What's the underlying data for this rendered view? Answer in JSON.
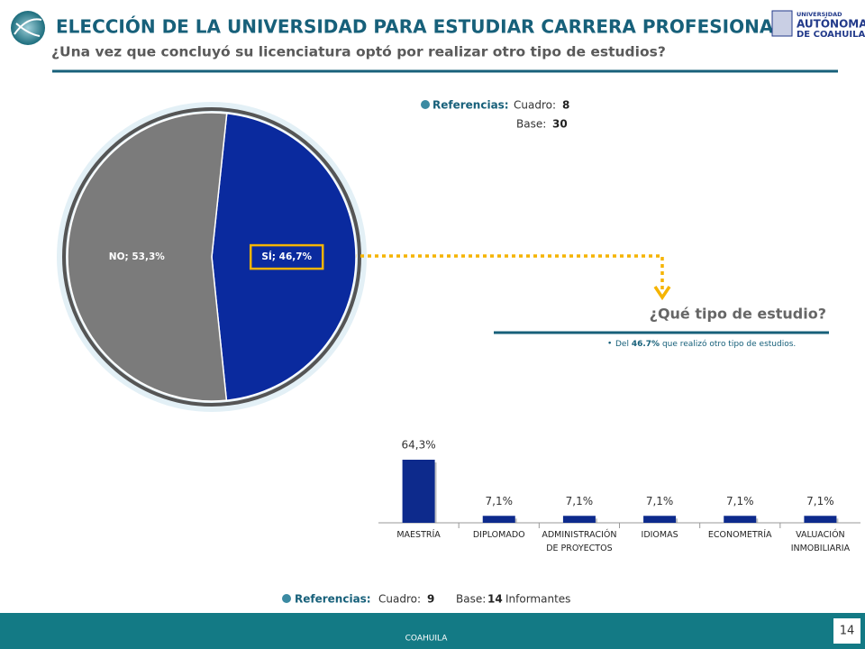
{
  "header": {
    "title": "ELECCIÓN DE LA UNIVERSIDAD PARA ESTUDIAR CARRERA PROFESIONAL",
    "subtitle": "¿Una vez que concluyó su licenciatura optó por realizar otro tipo de estudios?",
    "logo": [
      "UNIVERSIDAD",
      "AUTÓNOMA",
      "DE COAHUILA"
    ]
  },
  "references_top": {
    "label": "Referencias:",
    "cuadro_label": "Cuadro:",
    "cuadro": "8",
    "base_label": "Base:",
    "base": "30"
  },
  "chart_data": [
    {
      "type": "pie",
      "values": [
        46.7,
        53.3
      ],
      "value_labels": [
        "SÍ; 46,7%",
        "NO; 53,3%"
      ],
      "colors": [
        "#0a2a9e",
        "#7b7b7b"
      ]
    },
    {
      "type": "bar",
      "title": "¿Qué tipo de estudio?",
      "note": [
        "Del ",
        "46.7%",
        " que realizó otro tipo de estudios."
      ],
      "categories": [
        "MAESTRÍA",
        "DIPLOMADO",
        "ADMINISTRACIÓN DE PROYECTOS",
        "IDIOMAS",
        "ECONOMETRÍA",
        "VALUACIÓN INMOBILIARIA"
      ],
      "values": [
        64.3,
        7.1,
        7.1,
        7.1,
        7.1,
        7.1
      ],
      "value_labels": [
        "64,3%",
        "7,1%",
        "7,1%",
        "7,1%",
        "7,1%",
        "7,1%"
      ],
      "color": "#0d2a8c"
    }
  ],
  "references_bottom": {
    "label": "Referencias:",
    "cuadro_label": "Cuadro:",
    "cuadro": "9",
    "base_label": "Base:",
    "base": "14",
    "base_unit": "Informantes"
  },
  "footer": {
    "text": "COAHUILA",
    "page": "14"
  }
}
